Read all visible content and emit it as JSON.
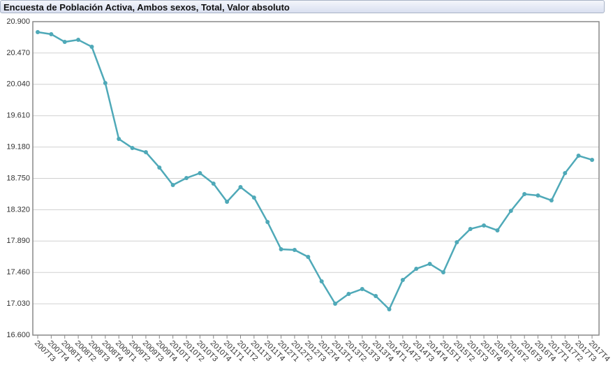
{
  "chart_data": {
    "type": "line",
    "title": "Encuesta de Población Activa, Ambos sexos, Total, Valor absoluto",
    "categories": [
      "2007T3",
      "2007T4",
      "2008T1",
      "2008T2",
      "2008T3",
      "2008T4",
      "2009T1",
      "2009T2",
      "2009T3",
      "2009T4",
      "2010T1",
      "2010T2",
      "2010T3",
      "2010T4",
      "2011T1",
      "2011T2",
      "2011T3",
      "2011T4",
      "2012T1",
      "2012T2",
      "2012T3",
      "2012T4",
      "2013T1",
      "2013T2",
      "2013T3",
      "2013T4",
      "2014T1",
      "2014T2",
      "2014T3",
      "2014T4",
      "2015T1",
      "2015T2",
      "2015T3",
      "2015T4",
      "2016T1",
      "2016T2",
      "2016T3",
      "2016T4",
      "2017T1",
      "2017T2",
      "2017T3",
      "2017T4"
    ],
    "values": [
      20756,
      20728,
      20622,
      20651,
      20555,
      20057,
      19291,
      19167,
      19109,
      18899,
      18659,
      18755,
      18822,
      18678,
      18429,
      18630,
      18487,
      18151,
      17778,
      17768,
      17673,
      17337,
      17031,
      17165,
      17232,
      17136,
      16954,
      17357,
      17510,
      17577,
      17462,
      17874,
      18056,
      18104,
      18037,
      18305,
      18534,
      18515,
      18448,
      18822,
      19061,
      19004
    ],
    "color": "#4fa9b8",
    "ylim": [
      16600,
      20900
    ],
    "yticks": [
      {
        "value": 16600,
        "label": "16.600"
      },
      {
        "value": 17030,
        "label": "17.030"
      },
      {
        "value": 17460,
        "label": "17.460"
      },
      {
        "value": 17890,
        "label": "17.890"
      },
      {
        "value": 18320,
        "label": "18.320"
      },
      {
        "value": 18750,
        "label": "18.750"
      },
      {
        "value": 19180,
        "label": "19.180"
      },
      {
        "value": 19610,
        "label": "19.610"
      },
      {
        "value": 20040,
        "label": "20.040"
      },
      {
        "value": 20470,
        "label": "20.470"
      },
      {
        "value": 20900,
        "label": "20.900"
      }
    ],
    "grid": true
  }
}
